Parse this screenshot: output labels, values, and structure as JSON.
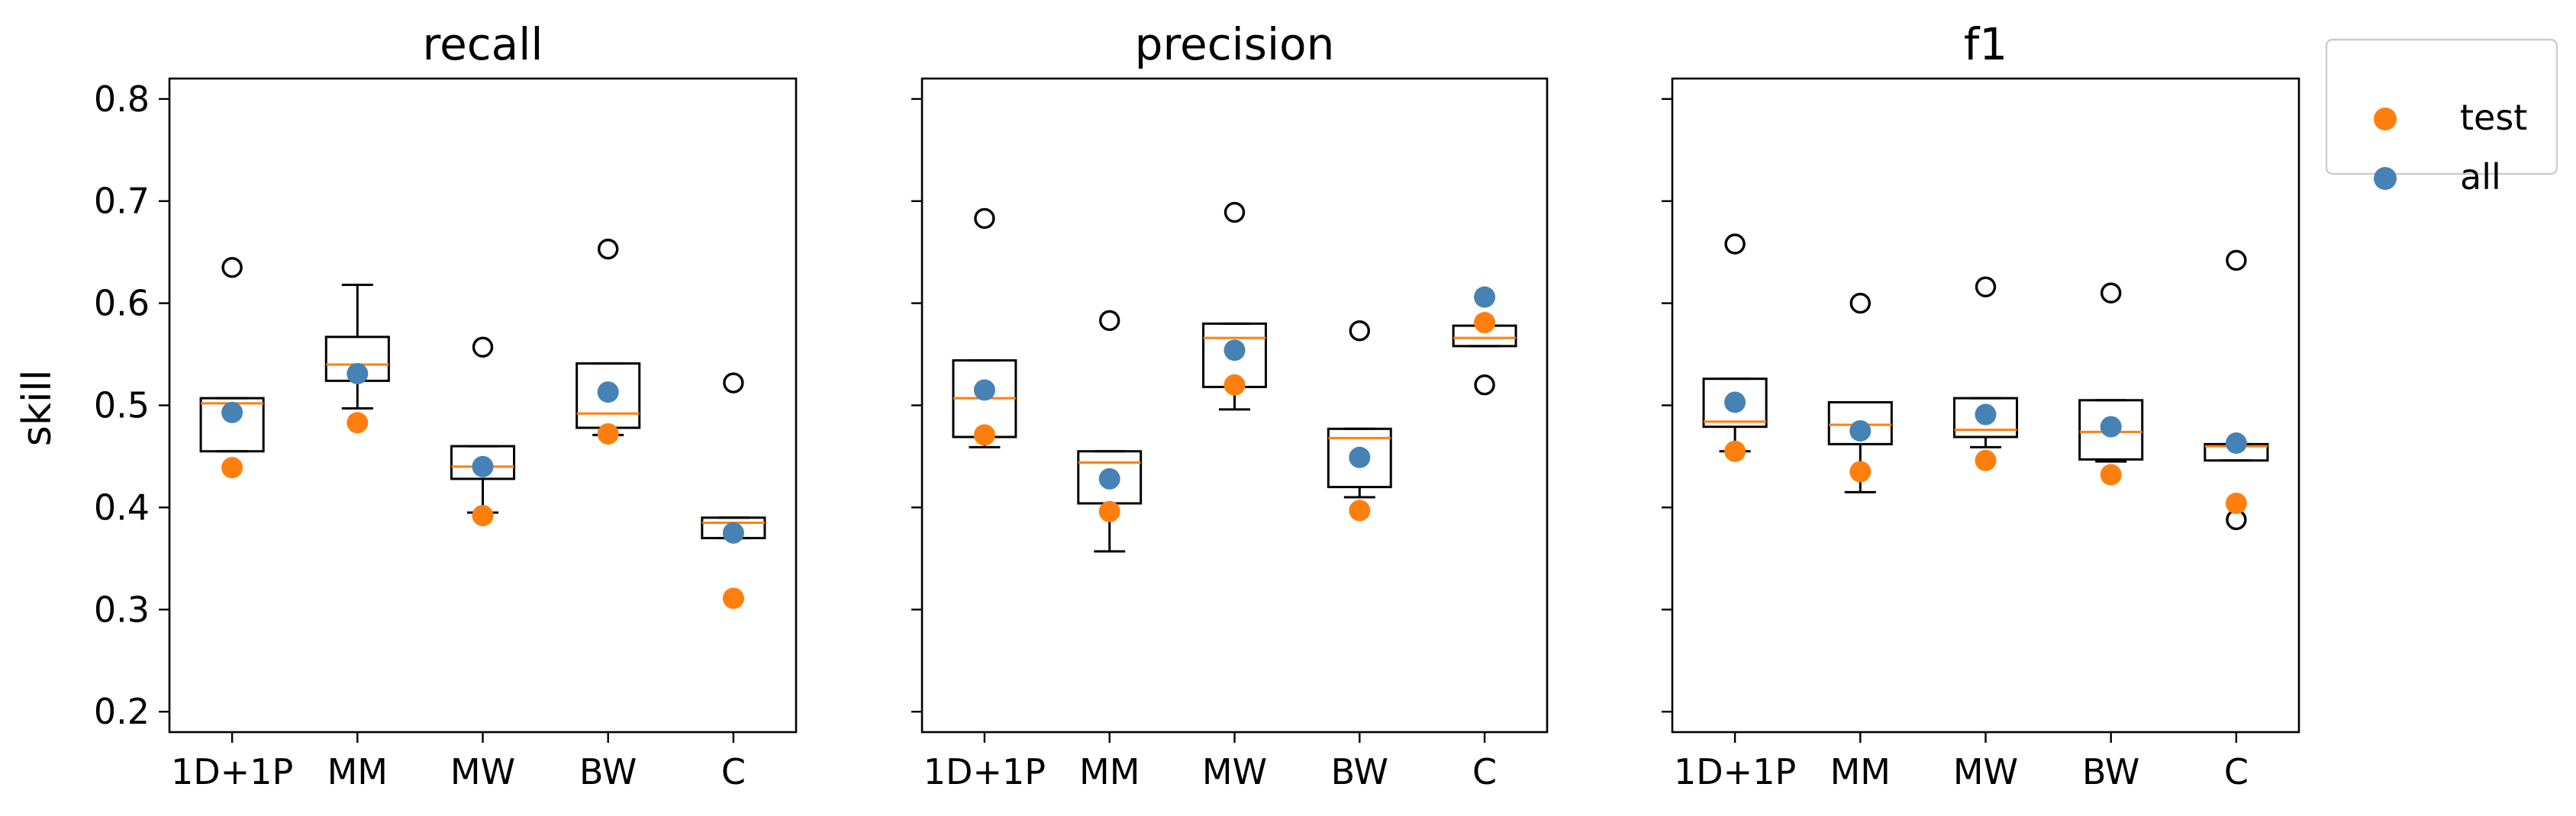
{
  "chart_data": {
    "type": "box",
    "ylabel": "skill",
    "ylim": [
      0.18,
      0.82
    ],
    "yticks": [
      0.2,
      0.3,
      0.4,
      0.5,
      0.6,
      0.7,
      0.8
    ],
    "categories": [
      "1D+1P",
      "MM",
      "MW",
      "BW",
      "C"
    ],
    "legend": {
      "placement": "outside-top-right",
      "entries": [
        {
          "label": "test",
          "color": "#ff7f0e"
        },
        {
          "label": "all",
          "color": "#4682b4"
        }
      ]
    },
    "colors": {
      "test": "#ff7f0e",
      "all": "#4682b4",
      "median": "#ff7f0e",
      "box": "#000000"
    },
    "panels": [
      {
        "title": "recall",
        "boxes": [
          {
            "category": "1D+1P",
            "q1": 0.455,
            "median": 0.502,
            "q3": 0.507,
            "whisker_low": 0.455,
            "whisker_high": 0.507,
            "fliers": [
              0.635
            ],
            "test": 0.439,
            "all": 0.493
          },
          {
            "category": "MM",
            "q1": 0.524,
            "median": 0.54,
            "q3": 0.567,
            "whisker_low": 0.497,
            "whisker_high": 0.618,
            "fliers": [],
            "test": 0.483,
            "all": 0.531
          },
          {
            "category": "MW",
            "q1": 0.428,
            "median": 0.44,
            "q3": 0.46,
            "whisker_low": 0.395,
            "whisker_high": 0.46,
            "fliers": [
              0.557
            ],
            "test": 0.392,
            "all": 0.44
          },
          {
            "category": "BW",
            "q1": 0.478,
            "median": 0.492,
            "q3": 0.541,
            "whisker_low": 0.471,
            "whisker_high": 0.541,
            "fliers": [
              0.653
            ],
            "test": 0.472,
            "all": 0.513
          },
          {
            "category": "C",
            "q1": 0.37,
            "median": 0.385,
            "q3": 0.39,
            "whisker_low": 0.37,
            "whisker_high": 0.39,
            "fliers": [
              0.522
            ],
            "test": 0.311,
            "all": 0.375
          }
        ]
      },
      {
        "title": "precision",
        "boxes": [
          {
            "category": "1D+1P",
            "q1": 0.469,
            "median": 0.507,
            "q3": 0.544,
            "whisker_low": 0.459,
            "whisker_high": 0.544,
            "fliers": [
              0.683
            ],
            "test": 0.471,
            "all": 0.515
          },
          {
            "category": "MM",
            "q1": 0.404,
            "median": 0.444,
            "q3": 0.455,
            "whisker_low": 0.357,
            "whisker_high": 0.455,
            "fliers": [
              0.583
            ],
            "test": 0.396,
            "all": 0.428
          },
          {
            "category": "MW",
            "q1": 0.518,
            "median": 0.566,
            "q3": 0.58,
            "whisker_low": 0.496,
            "whisker_high": 0.58,
            "fliers": [
              0.689
            ],
            "test": 0.52,
            "all": 0.554
          },
          {
            "category": "BW",
            "q1": 0.42,
            "median": 0.468,
            "q3": 0.477,
            "whisker_low": 0.41,
            "whisker_high": 0.477,
            "fliers": [
              0.573
            ],
            "test": 0.397,
            "all": 0.449
          },
          {
            "category": "C",
            "q1": 0.558,
            "median": 0.566,
            "q3": 0.578,
            "whisker_low": 0.558,
            "whisker_high": 0.578,
            "fliers": [
              0.52
            ],
            "test": 0.581,
            "all": 0.606
          }
        ]
      },
      {
        "title": "f1",
        "boxes": [
          {
            "category": "1D+1P",
            "q1": 0.479,
            "median": 0.484,
            "q3": 0.526,
            "whisker_low": 0.455,
            "whisker_high": 0.526,
            "fliers": [
              0.658
            ],
            "test": 0.455,
            "all": 0.503
          },
          {
            "category": "MM",
            "q1": 0.462,
            "median": 0.481,
            "q3": 0.503,
            "whisker_low": 0.415,
            "whisker_high": 0.503,
            "fliers": [
              0.6
            ],
            "test": 0.435,
            "all": 0.475
          },
          {
            "category": "MW",
            "q1": 0.469,
            "median": 0.476,
            "q3": 0.507,
            "whisker_low": 0.459,
            "whisker_high": 0.507,
            "fliers": [
              0.616
            ],
            "test": 0.446,
            "all": 0.491
          },
          {
            "category": "BW",
            "q1": 0.447,
            "median": 0.474,
            "q3": 0.505,
            "whisker_low": 0.445,
            "whisker_high": 0.505,
            "fliers": [
              0.61
            ],
            "test": 0.432,
            "all": 0.479
          },
          {
            "category": "C",
            "q1": 0.446,
            "median": 0.46,
            "q3": 0.462,
            "whisker_low": 0.446,
            "whisker_high": 0.462,
            "fliers": [
              0.642,
              0.388
            ],
            "test": 0.404,
            "all": 0.463
          }
        ]
      }
    ]
  }
}
